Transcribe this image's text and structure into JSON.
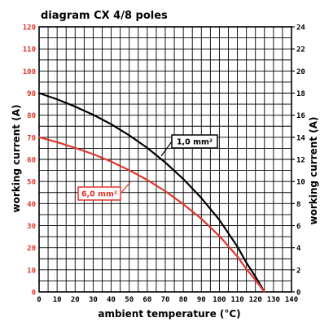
{
  "chart_data": {
    "type": "line",
    "title": "diagram CX 4/8 poles",
    "xlabel": "ambient temperature (°C)",
    "ylabel_left": "working current (A)",
    "ylabel_right": "working current (A)",
    "xlim": [
      0,
      140
    ],
    "ylim_left": [
      0,
      120
    ],
    "ylim_right": [
      0,
      24
    ],
    "x_ticks": [
      "0",
      "10",
      "20",
      "30",
      "40",
      "50",
      "60",
      "70",
      "80",
      "90",
      "100",
      "110",
      "120",
      "130",
      "140"
    ],
    "y_ticks_left": [
      "0",
      "10",
      "20",
      "30",
      "40",
      "50",
      "60",
      "70",
      "80",
      "90",
      "100",
      "110",
      "120"
    ],
    "y_ticks_right": [
      "0",
      "2",
      "4",
      "6",
      "8",
      "10",
      "12",
      "14",
      "16",
      "18",
      "20",
      "22",
      "24"
    ],
    "grid": true,
    "colors": {
      "left_axis": "#e0352b",
      "black_series": "#000000",
      "red_series": "#e0352b",
      "grid": "#000000"
    },
    "series": [
      {
        "name": "1,0 mm²",
        "color": "#000000",
        "x": [
          0,
          10,
          20,
          30,
          40,
          50,
          60,
          70,
          80,
          90,
          100,
          110,
          115,
          120,
          123,
          125
        ],
        "y": [
          90,
          87.2,
          83.9,
          80.2,
          75.9,
          70.9,
          65.2,
          58.6,
          51.1,
          42.5,
          32.6,
          20.5,
          13.2,
          6.9,
          2.8,
          0
        ]
      },
      {
        "name": "6,0 mm²",
        "color": "#e0352b",
        "x": [
          0,
          10,
          20,
          30,
          40,
          50,
          60,
          70,
          80,
          90,
          100,
          110,
          115,
          120,
          123,
          125
        ],
        "y": [
          70,
          67.8,
          65.2,
          62.4,
          59,
          55.1,
          50.7,
          45.6,
          39.7,
          33.1,
          25.3,
          16,
          10.3,
          5.4,
          2.2,
          0
        ]
      }
    ]
  }
}
